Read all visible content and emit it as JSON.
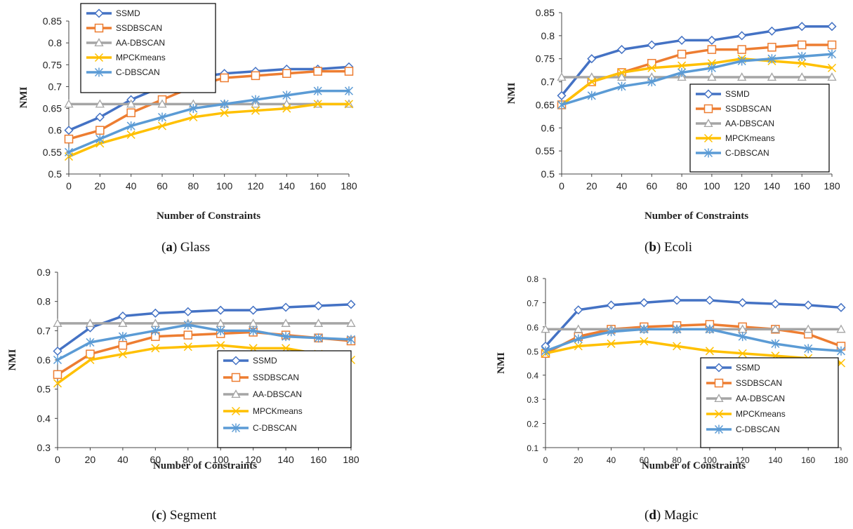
{
  "chart_data": [
    {
      "type": "line",
      "caption": {
        "letter": "a",
        "name": "Glass"
      },
      "xlabel": "Number of Constraints",
      "ylabel": "NMI",
      "x": [
        0,
        20,
        40,
        60,
        80,
        100,
        120,
        140,
        160,
        180
      ],
      "ylim": [
        0.5,
        0.85
      ],
      "yticks": [
        "0.5",
        "0.55",
        "0.6",
        "0.65",
        "0.7",
        "0.75",
        "0.8",
        "0.85"
      ],
      "legend_position": "top-left",
      "series": [
        {
          "name": "SSMD",
          "color": "#4472C4",
          "marker": "diamond",
          "values": [
            0.6,
            0.63,
            0.67,
            0.7,
            0.72,
            0.73,
            0.735,
            0.74,
            0.74,
            0.745
          ]
        },
        {
          "name": "SSDBSCAN",
          "color": "#ED7D31",
          "marker": "square",
          "values": [
            0.58,
            0.6,
            0.64,
            0.67,
            0.7,
            0.72,
            0.725,
            0.73,
            0.735,
            0.735
          ]
        },
        {
          "name": "AA-DBSCAN",
          "color": "#A5A5A5",
          "marker": "triangle",
          "values": [
            0.66,
            0.66,
            0.66,
            0.66,
            0.66,
            0.66,
            0.66,
            0.66,
            0.66,
            0.66
          ]
        },
        {
          "name": "MPCKmeans",
          "color": "#FFC000",
          "marker": "x",
          "values": [
            0.54,
            0.57,
            0.59,
            0.61,
            0.63,
            0.64,
            0.645,
            0.65,
            0.66,
            0.66
          ]
        },
        {
          "name": "C-DBSCAN",
          "color": "#5B9BD5",
          "marker": "star",
          "values": [
            0.55,
            0.58,
            0.61,
            0.63,
            0.65,
            0.66,
            0.67,
            0.68,
            0.69,
            0.69
          ]
        }
      ]
    },
    {
      "type": "line",
      "caption": {
        "letter": "b",
        "name": "Ecoli"
      },
      "xlabel": "Number of Constraints",
      "ylabel": "NMI",
      "x": [
        0,
        20,
        40,
        60,
        80,
        100,
        120,
        140,
        160,
        180
      ],
      "ylim": [
        0.5,
        0.85
      ],
      "yticks": [
        "0.5",
        "0.55",
        "0.6",
        "0.65",
        "0.7",
        "0.75",
        "0.8",
        "0.85"
      ],
      "legend_position": "bottom-right",
      "series": [
        {
          "name": "SSMD",
          "color": "#4472C4",
          "marker": "diamond",
          "values": [
            0.67,
            0.75,
            0.77,
            0.78,
            0.79,
            0.79,
            0.8,
            0.81,
            0.82,
            0.82
          ]
        },
        {
          "name": "SSDBSCAN",
          "color": "#ED7D31",
          "marker": "square",
          "values": [
            0.65,
            0.7,
            0.72,
            0.74,
            0.76,
            0.77,
            0.77,
            0.775,
            0.78,
            0.78
          ]
        },
        {
          "name": "AA-DBSCAN",
          "color": "#A5A5A5",
          "marker": "triangle",
          "values": [
            0.71,
            0.71,
            0.71,
            0.71,
            0.71,
            0.71,
            0.71,
            0.71,
            0.71,
            0.71
          ]
        },
        {
          "name": "MPCKmeans",
          "color": "#FFC000",
          "marker": "x",
          "values": [
            0.65,
            0.7,
            0.72,
            0.73,
            0.735,
            0.74,
            0.75,
            0.745,
            0.74,
            0.73
          ]
        },
        {
          "name": "C-DBSCAN",
          "color": "#5B9BD5",
          "marker": "star",
          "values": [
            0.65,
            0.67,
            0.69,
            0.7,
            0.72,
            0.73,
            0.745,
            0.75,
            0.755,
            0.76
          ]
        }
      ]
    },
    {
      "type": "line",
      "caption": {
        "letter": "c",
        "name": "Segment"
      },
      "xlabel": "Number of Constraints",
      "ylabel": "NMI",
      "x": [
        0,
        20,
        40,
        60,
        80,
        100,
        120,
        140,
        160,
        180
      ],
      "ylim": [
        0.3,
        0.9
      ],
      "yticks": [
        "0.3",
        "0.4",
        "0.5",
        "0.6",
        "0.7",
        "0.8",
        "0.9"
      ],
      "legend_position": "bottom-right",
      "series": [
        {
          "name": "SSMD",
          "color": "#4472C4",
          "marker": "diamond",
          "values": [
            0.63,
            0.71,
            0.75,
            0.76,
            0.765,
            0.77,
            0.77,
            0.78,
            0.785,
            0.79
          ]
        },
        {
          "name": "SSDBSCAN",
          "color": "#ED7D31",
          "marker": "square",
          "values": [
            0.55,
            0.62,
            0.65,
            0.68,
            0.685,
            0.69,
            0.695,
            0.685,
            0.675,
            0.665
          ]
        },
        {
          "name": "AA-DBSCAN",
          "color": "#A5A5A5",
          "marker": "triangle",
          "values": [
            0.725,
            0.725,
            0.725,
            0.725,
            0.725,
            0.725,
            0.725,
            0.725,
            0.725,
            0.725
          ]
        },
        {
          "name": "MPCKmeans",
          "color": "#FFC000",
          "marker": "x",
          "values": [
            0.52,
            0.6,
            0.62,
            0.64,
            0.645,
            0.65,
            0.64,
            0.64,
            0.62,
            0.6
          ]
        },
        {
          "name": "C-DBSCAN",
          "color": "#5B9BD5",
          "marker": "star",
          "values": [
            0.6,
            0.66,
            0.68,
            0.7,
            0.72,
            0.7,
            0.7,
            0.68,
            0.675,
            0.67
          ]
        }
      ]
    },
    {
      "type": "line",
      "caption": {
        "letter": "d",
        "name": "Magic"
      },
      "xlabel": "Number of Constraints",
      "ylabel": "NMI",
      "x": [
        0,
        20,
        40,
        60,
        80,
        100,
        120,
        140,
        160,
        180
      ],
      "ylim": [
        0.1,
        0.8
      ],
      "yticks": [
        "0.1",
        "0.2",
        "0.3",
        "0.4",
        "0.5",
        "0.6",
        "0.7",
        "0.8"
      ],
      "legend_position": "bottom-right",
      "series": [
        {
          "name": "SSMD",
          "color": "#4472C4",
          "marker": "diamond",
          "values": [
            0.52,
            0.67,
            0.69,
            0.7,
            0.71,
            0.71,
            0.7,
            0.695,
            0.69,
            0.68
          ]
        },
        {
          "name": "SSDBSCAN",
          "color": "#ED7D31",
          "marker": "square",
          "values": [
            0.49,
            0.56,
            0.59,
            0.6,
            0.605,
            0.61,
            0.6,
            0.59,
            0.57,
            0.52
          ]
        },
        {
          "name": "AA-DBSCAN",
          "color": "#A5A5A5",
          "marker": "triangle",
          "values": [
            0.59,
            0.59,
            0.59,
            0.59,
            0.59,
            0.59,
            0.59,
            0.59,
            0.59,
            0.59
          ]
        },
        {
          "name": "MPCKmeans",
          "color": "#FFC000",
          "marker": "x",
          "values": [
            0.49,
            0.52,
            0.53,
            0.54,
            0.52,
            0.5,
            0.49,
            0.48,
            0.47,
            0.45
          ]
        },
        {
          "name": "C-DBSCAN",
          "color": "#5B9BD5",
          "marker": "star",
          "values": [
            0.5,
            0.55,
            0.58,
            0.59,
            0.59,
            0.59,
            0.56,
            0.53,
            0.51,
            0.5
          ]
        }
      ]
    }
  ]
}
